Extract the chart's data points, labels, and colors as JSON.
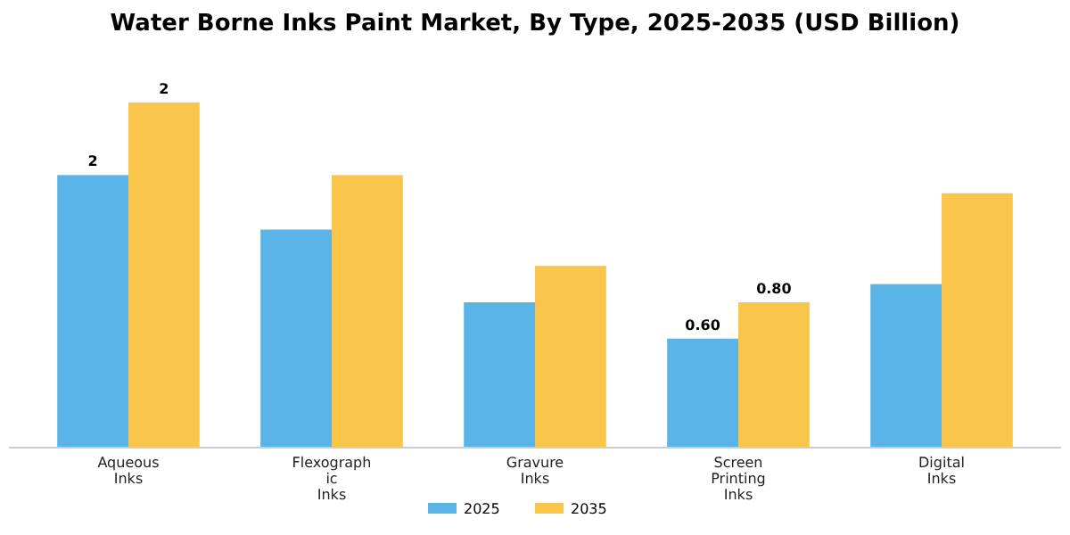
{
  "chart_data": {
    "type": "bar",
    "title": "Water Borne Inks Paint Market, By Type, 2025-2035 (USD Billion)",
    "categories": [
      "Aqueous Inks",
      "Flexographic Inks",
      "Gravure Inks",
      "Screen Printing Inks",
      "Digital Inks"
    ],
    "series": [
      {
        "name": "2025",
        "color": "#5ab4e8",
        "values": [
          1.5,
          1.2,
          0.8,
          0.6,
          0.9
        ],
        "value_labels": [
          "2",
          null,
          null,
          "0.60",
          null
        ]
      },
      {
        "name": "2035",
        "color": "#f9c54a",
        "values": [
          1.9,
          1.5,
          1.0,
          0.8,
          1.4
        ],
        "value_labels": [
          "2",
          null,
          null,
          "0.80",
          null
        ]
      }
    ],
    "legend": "bottom"
  }
}
